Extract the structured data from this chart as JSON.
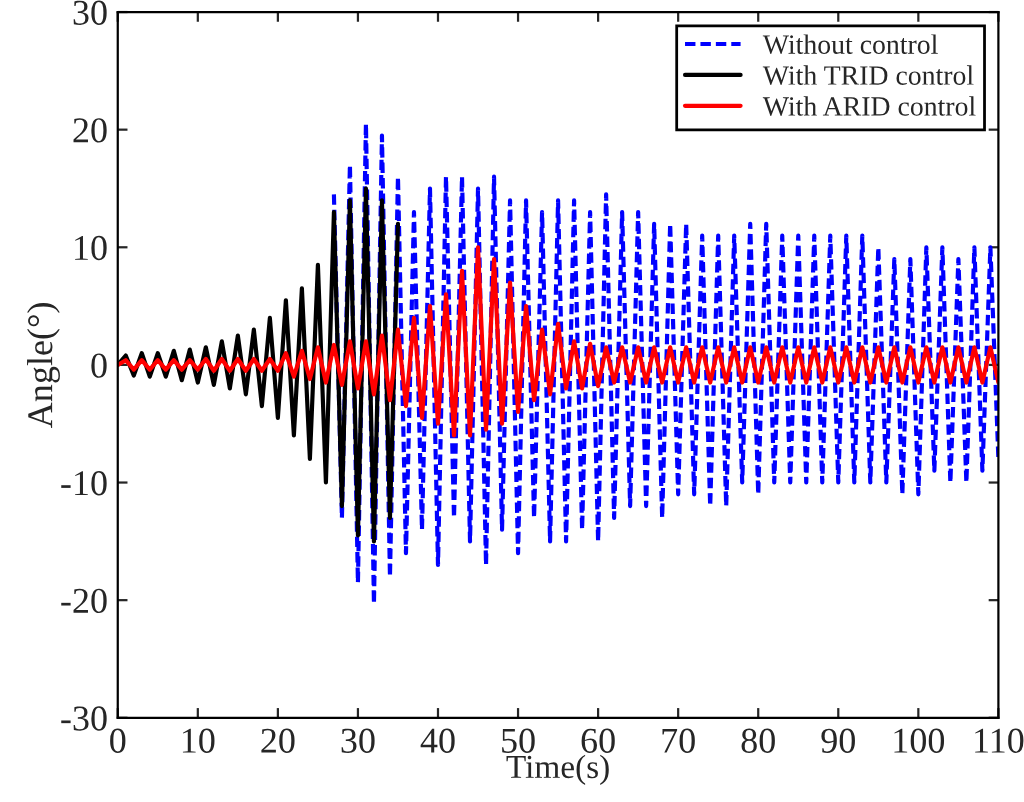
{
  "chart_data": {
    "type": "line",
    "xlabel": "Time(s)",
    "ylabel": "Angle(°)",
    "xlim": [
      0,
      110
    ],
    "ylim": [
      -30,
      30
    ],
    "xticks": [
      0,
      10,
      20,
      30,
      40,
      50,
      60,
      70,
      80,
      90,
      100,
      110
    ],
    "yticks": [
      -30,
      -20,
      -10,
      0,
      10,
      20,
      30
    ],
    "grid": false,
    "legend": "top right",
    "x": [
      0,
      1,
      2,
      3,
      4,
      5,
      6,
      7,
      8,
      9,
      10,
      11,
      12,
      13,
      14,
      15,
      16,
      17,
      18,
      19,
      20,
      21,
      22,
      23,
      24,
      25,
      26,
      27,
      28,
      29,
      30,
      31,
      32,
      33,
      34,
      35,
      36,
      37,
      38,
      39,
      40,
      41,
      42,
      43,
      44,
      45,
      46,
      47,
      48,
      49,
      50,
      51,
      52,
      53,
      54,
      55,
      56,
      57,
      58,
      59,
      60,
      61,
      62,
      63,
      64,
      65,
      66,
      67,
      68,
      69,
      70,
      71,
      72,
      73,
      74,
      75,
      76,
      77,
      78,
      79,
      80,
      81,
      82,
      83,
      84,
      85,
      86,
      87,
      88,
      89,
      90,
      91,
      92,
      93,
      94,
      95,
      96,
      97,
      98,
      99,
      100,
      101,
      102,
      103,
      104,
      105,
      106,
      107,
      108,
      109,
      110
    ],
    "series": [
      {
        "name": "Without control",
        "color": "#0000ff",
        "line_style": "dashed",
        "values": [
          null,
          null,
          null,
          null,
          null,
          null,
          null,
          null,
          null,
          null,
          null,
          null,
          null,
          null,
          null,
          null,
          null,
          null,
          null,
          null,
          null,
          null,
          null,
          null,
          null,
          null,
          null,
          14.5,
          -13,
          17,
          -18.5,
          20.5,
          -20.3,
          19.5,
          -18,
          16,
          -16,
          13,
          -14,
          15,
          -17,
          16,
          -13,
          16,
          -15,
          15,
          -17,
          16,
          -14,
          14,
          -16,
          14,
          -13,
          13,
          -15,
          14,
          -15,
          14,
          -14,
          13,
          -15,
          14.5,
          -13,
          13,
          -12,
          13,
          -12,
          12,
          -13,
          12,
          -11,
          12,
          -11,
          11,
          -12,
          11,
          -12,
          11,
          -10,
          12,
          -11,
          12,
          -10,
          11,
          -10,
          11,
          -10,
          11,
          -10,
          11,
          -10,
          11,
          -10,
          11,
          -10,
          10,
          -10,
          9,
          -11,
          9,
          -11,
          10,
          -9,
          10,
          -10,
          9,
          -10,
          10,
          -9,
          10,
          -8
        ]
      },
      {
        "name": "With TRID control",
        "color": "#000000",
        "line_style": "solid",
        "x": [
          0,
          1,
          2,
          3,
          4,
          5,
          6,
          7,
          8,
          9,
          10,
          11,
          12,
          13,
          14,
          15,
          16,
          17,
          18,
          19,
          20,
          21,
          22,
          23,
          24,
          25,
          26,
          27,
          28,
          29,
          30,
          31,
          32,
          33,
          34,
          35
        ],
        "values": [
          0,
          0.8,
          -0.9,
          1,
          -1,
          1,
          -1,
          1.2,
          -1.3,
          1.3,
          -1.5,
          1.5,
          -1.7,
          2,
          -2,
          2.5,
          -2.5,
          3,
          -3.5,
          4,
          -4.5,
          5.5,
          -6,
          6.5,
          -8,
          8.5,
          -10,
          13,
          -12,
          14,
          -14.5,
          15,
          -15,
          14,
          -13,
          12
        ]
      },
      {
        "name": "With ARID control",
        "color": "#ff0000",
        "line_style": "solid",
        "values": [
          0,
          0.4,
          -0.4,
          0.4,
          -0.4,
          0.4,
          -0.4,
          0.4,
          -0.4,
          0.4,
          -0.4,
          0.5,
          -0.5,
          0.5,
          -0.5,
          0.5,
          -0.5,
          0.5,
          -0.5,
          0.5,
          -0.5,
          1,
          -1,
          1.2,
          -1.2,
          1.5,
          -1.5,
          1.7,
          -1.7,
          2,
          -2,
          2,
          -2.5,
          2.5,
          -3,
          3,
          -3.5,
          4,
          -4.5,
          5,
          -5,
          6,
          -6,
          8,
          -6,
          10,
          -5.5,
          9,
          -5,
          7,
          -4,
          5,
          -3,
          3,
          -2.5,
          3.5,
          -2,
          2,
          -2,
          1.8,
          -1.8,
          1.5,
          -1.5,
          1.5,
          -1.5,
          1.5,
          -1.5,
          1.5,
          -1.5,
          1.5,
          -1.5,
          1.5,
          -1.5,
          1.5,
          -1.5,
          1.5,
          -1.5,
          1.5,
          -1.5,
          1.5,
          -1.5,
          1.5,
          -1.5,
          1.5,
          -1.5,
          1.5,
          -1.5,
          1.5,
          -1.5,
          1.5,
          -1.5,
          1.5,
          -1.5,
          1.5,
          -1.5,
          1.5,
          -1.5,
          1.5,
          -1.5,
          1.5,
          -1.5,
          1.5,
          -1.5,
          1.5,
          -1.5,
          1.5,
          -1.5,
          1.5,
          -1.5,
          1.5,
          -1.5
        ]
      }
    ]
  }
}
